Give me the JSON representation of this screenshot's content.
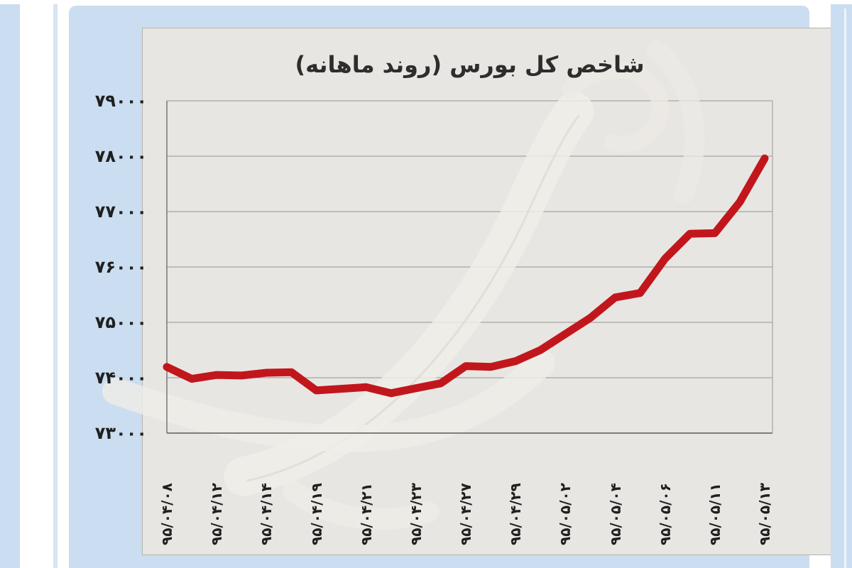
{
  "page": {
    "background": "#ffffff",
    "frame_color": "#cbddf0",
    "paper_color": "#e8e6e2",
    "text_color": "#1f1f1f"
  },
  "chart_data": {
    "type": "line",
    "title": "شاخص کل بورس (روند ماهانه)",
    "xlabel": "",
    "ylabel": "",
    "ylim": [
      73000,
      79000
    ],
    "grid": true,
    "legend_position": "none",
    "line_color": "#c2161d",
    "y_ticks": [
      79000,
      78000,
      77000,
      76000,
      75000,
      74000,
      73000
    ],
    "y_tick_labels": [
      "۷۹۰۰۰",
      "۷۸۰۰۰",
      "۷۷۰۰۰",
      "۷۶۰۰۰",
      "۷۵۰۰۰",
      "۷۴۰۰۰",
      "۷۳۰۰۰"
    ],
    "x_tick_labels": [
      "۹۵/۰۴/۰۸",
      "۹۵/۰۴/۱۲",
      "۹۵/۰۴/۱۴",
      "۹۵/۰۴/۱۹",
      "۹۵/۰۴/۲۱",
      "۹۵/۰۴/۲۳",
      "۹۵/۰۴/۲۷",
      "۹۵/۰۴/۲۹",
      "۹۵/۰۵/۰۲",
      "۹۵/۰۵/۰۴",
      "۹۵/۰۵/۰۶",
      "۹۵/۰۵/۱۱",
      "۹۵/۰۵/۱۳"
    ],
    "x_tick_point_indices": [
      0,
      2,
      4,
      6,
      8,
      10,
      12,
      14,
      16,
      18,
      20,
      22,
      24
    ],
    "series": [
      {
        "values": [
          74195,
          73980,
          74050,
          74040,
          74090,
          74100,
          73770,
          73800,
          73830,
          73720,
          73810,
          73900,
          74210,
          74195,
          74300,
          74500,
          74790,
          75080,
          75450,
          75530,
          76150,
          76600,
          76610,
          77170,
          77960
        ]
      }
    ]
  }
}
